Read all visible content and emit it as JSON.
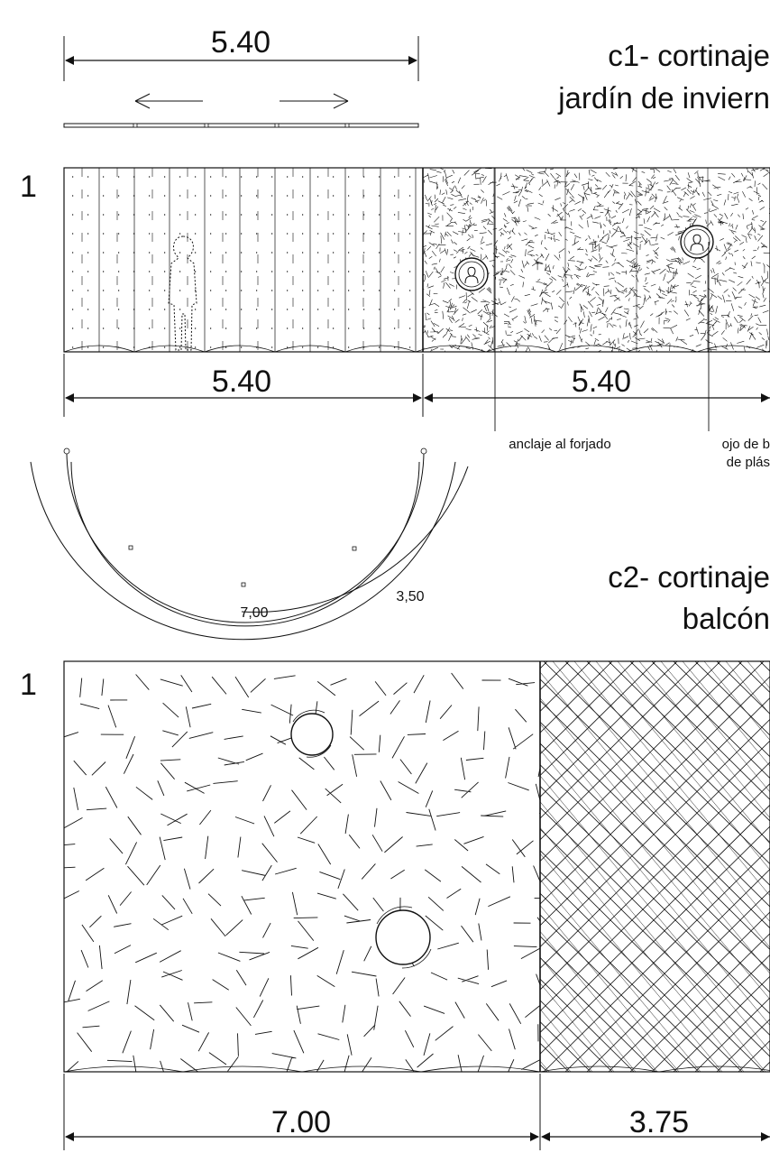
{
  "sections": {
    "c1": {
      "title_line1": "c1- cortinaje",
      "title_line2": "jardín de inviern",
      "plan_dimension": "5.40",
      "elevation_index": "1",
      "dim_left": "5.40",
      "dim_right": "5.40",
      "note_anchor": "anclaje al forjado",
      "note_eye_line1": "ojo de b",
      "note_eye_line2": "de plás"
    },
    "c2": {
      "title_line1": "c2- cortinaje",
      "title_line2": "balcón",
      "plan_dim_inner": "7,00",
      "plan_dim_outer": "3,50",
      "elevation_index": "1",
      "dim_left": "7.00",
      "dim_right": "3.75"
    }
  },
  "colors": {
    "ink": "#111111",
    "paper": "#ffffff"
  }
}
